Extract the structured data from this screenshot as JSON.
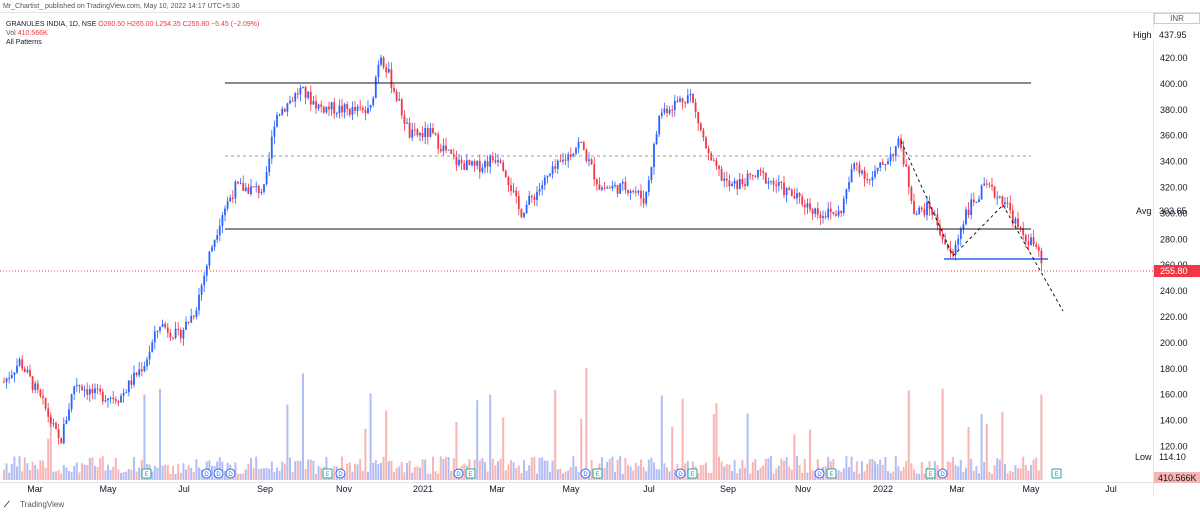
{
  "header": {
    "publisher_line": "Mr_Chartist_ published on TradingView.com, May 10, 2022 14:17 UTC+5:30"
  },
  "legend": {
    "symbol": "GRANULES INDIA, 1D, NSE",
    "ohlc": "O260.50 H265.00 L254.35 C255.80 −5.45 (−2.09%)",
    "volume_label": "Vol",
    "volume_value": "410.566K",
    "indicator": "All Patterns"
  },
  "price_axis": {
    "currency": "INR",
    "ticks": [
      "420.00",
      "400.00",
      "380.00",
      "360.00",
      "340.00",
      "320.00",
      "300.00",
      "280.00",
      "260.00",
      "240.00",
      "220.00",
      "200.00",
      "180.00",
      "160.00",
      "140.00",
      "120.00"
    ],
    "high_label": "High",
    "high_value": "437.95",
    "avg_label": "Avg",
    "avg_value": "303.65",
    "low_label": "Low",
    "low_value": "114.10",
    "last_price": "255.80",
    "volume_badge": "410.566K"
  },
  "time_axis": {
    "labels": [
      "Mar",
      "May",
      "Jul",
      "Sep",
      "Nov",
      "2021",
      "Mar",
      "May",
      "Jul",
      "Sep",
      "Nov",
      "2022",
      "Mar",
      "May",
      "Jul"
    ]
  },
  "event_markers": [
    "E",
    "D",
    "D",
    "D",
    "E",
    "D",
    "D",
    "E",
    "D",
    "E",
    "D",
    "E",
    "D",
    "E",
    "E",
    "D",
    "E"
  ],
  "footer": {
    "brand": "TradingView"
  },
  "colors": {
    "up": "#2962ff",
    "down": "#f23645",
    "up_volume": "#b2bdf5",
    "down_volume": "#f7b5b5",
    "last_price_badge": "#f23645",
    "support_line": "#2962ff"
  }
}
